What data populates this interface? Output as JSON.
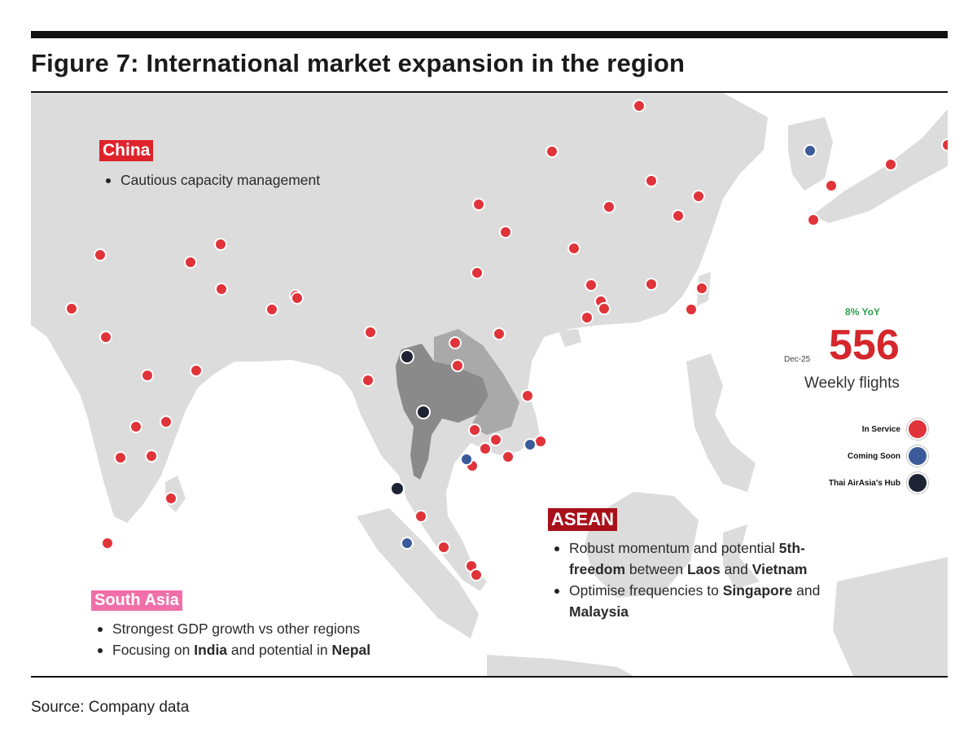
{
  "figure": {
    "title": "Figure 7: International market expansion in the region",
    "source": "Source: Company data"
  },
  "colors": {
    "in_service": "#e0343a",
    "coming_soon": "#3a5a9a",
    "hub": "#1e2433",
    "china_tag": "#e0222b",
    "asean_tag": "#a8101a",
    "south_asia_tag": "#f06fa8",
    "land": "#dcdcdc",
    "sea": "#ffffff",
    "thailand": "#8a8a8a",
    "yoy_green": "#2e9e4a",
    "stat_red": "#d5262b"
  },
  "regions": {
    "china": {
      "label": "China",
      "bullets": [
        "Cautious capacity management"
      ]
    },
    "asean": {
      "label": "ASEAN",
      "bullet1_pre": "Robust momentum and potential ",
      "bullet1_b1": "5th-",
      "bullet1_b2": "freedom",
      "bullet1_mid": " between ",
      "bullet1_b3": "Laos",
      "bullet1_and": " and ",
      "bullet1_b4": "Vietnam",
      "bullet2_pre": "Optimise frequencies to ",
      "bullet2_b1": "Singapore",
      "bullet2_and": " and",
      "bullet2_b2": "Malaysia"
    },
    "south_asia": {
      "label": "South Asia",
      "bullet1": "Strongest GDP growth vs other regions",
      "bullet2_pre": "Focusing on ",
      "bullet2_b1": "India",
      "bullet2_mid": " and potential in ",
      "bullet2_b2": "Nepal"
    }
  },
  "stat": {
    "yoy": "8% YoY",
    "date": "Dec-25",
    "value": "556",
    "label": "Weekly flights"
  },
  "legend": [
    {
      "label": "In Service",
      "status": "in_service"
    },
    {
      "label": "Coming Soon",
      "status": "coming_soon"
    },
    {
      "label": "Thai AirAsia's Hub",
      "status": "hub"
    }
  ]
}
